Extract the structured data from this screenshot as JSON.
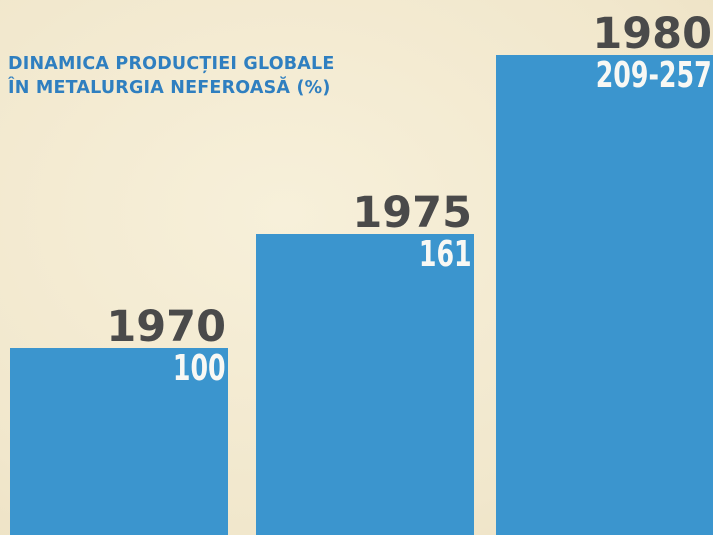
{
  "title_lines": [
    "DINAMICA PRODUCȚIEI GLOBALE",
    "ÎN METALURGIA NEFEROASĂ (%)"
  ],
  "colors": {
    "bar": "#3b95ce",
    "title": "#2f7fc0",
    "year_label": "#4a4a4a",
    "value_label": "#f8f8f4",
    "background": "#f4ecd3"
  },
  "chart_data": {
    "type": "bar",
    "title": "DINAMICA PRODUCȚIEI GLOBALE ÎN METALURGIA NEFEROASĂ (%)",
    "categories": [
      "1970",
      "1975",
      "1980"
    ],
    "value_labels": [
      "100",
      "161",
      "209-257"
    ],
    "values": [
      100,
      161,
      257
    ],
    "value_ranges": [
      [
        100,
        100
      ],
      [
        161,
        161
      ],
      [
        209,
        257
      ]
    ],
    "ylim": [
      0,
      257
    ],
    "grid": false,
    "legend": "none"
  }
}
